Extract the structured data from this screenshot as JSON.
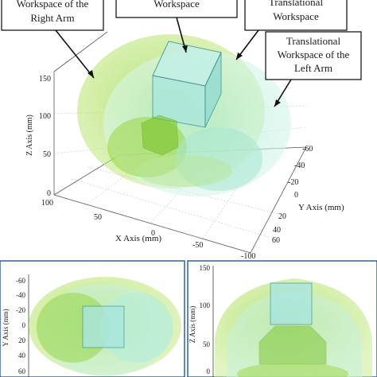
{
  "callouts": {
    "right_arm_line1": "Workspace of the",
    "right_arm_line2": "Right Arm",
    "center_line1": "Workspace",
    "translational_line1": "Translational",
    "translational_line2": "Workspace",
    "left_arm_line1": "Translational",
    "left_arm_line2": "Workspace of the",
    "left_arm_line3": "Left Arm"
  },
  "main_view": {
    "z_axis_label": "Z Axis (mm)",
    "y_axis_label": "Y Axis (mm)",
    "x_axis_label": "X Axis (mm)",
    "z_ticks": [
      "150",
      "100",
      "50",
      "0"
    ],
    "y_ticks": [
      "-60",
      "-40",
      "-20",
      "0",
      "20",
      "40",
      "60"
    ],
    "x_ticks": [
      "100",
      "50",
      "0",
      "-50",
      "-100"
    ]
  },
  "bottom_left_view": {
    "y_axis_label": "Y Axis (mm)",
    "y_ticks": [
      "-60",
      "-40",
      "-20",
      "0",
      "20",
      "40",
      "60"
    ]
  },
  "bottom_right_view": {
    "z_axis_label": "Z Axis (mm)",
    "z_ticks": [
      "150",
      "100",
      "50",
      "0"
    ]
  },
  "colors": {
    "panel_border": "#2f5fa8",
    "right_arm_fill": "#b8e07a",
    "left_arm_fill": "#bff0e0",
    "cube_fill": "#a9e6df"
  }
}
